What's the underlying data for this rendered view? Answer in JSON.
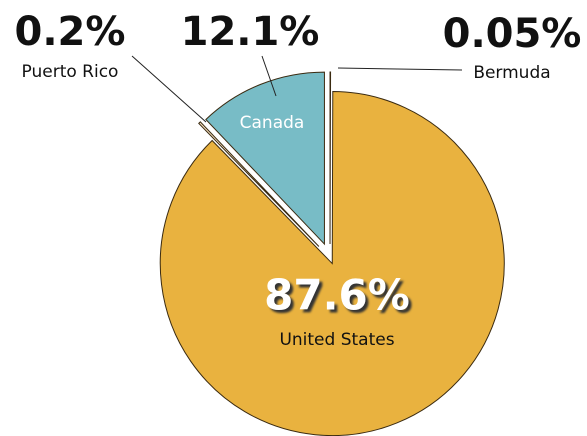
{
  "chart_data": {
    "type": "pie",
    "categories": [
      "Bermuda",
      "United States",
      "Puerto Rico",
      "Canada"
    ],
    "values": [
      0.05,
      87.6,
      0.2,
      12.1
    ],
    "value_labels": [
      "0.05%",
      "87.6%",
      "0.2%",
      "12.1%"
    ],
    "colors": [
      "#d9773a",
      "#e9b23f",
      "#f6e2c4",
      "#78bcc6"
    ]
  }
}
